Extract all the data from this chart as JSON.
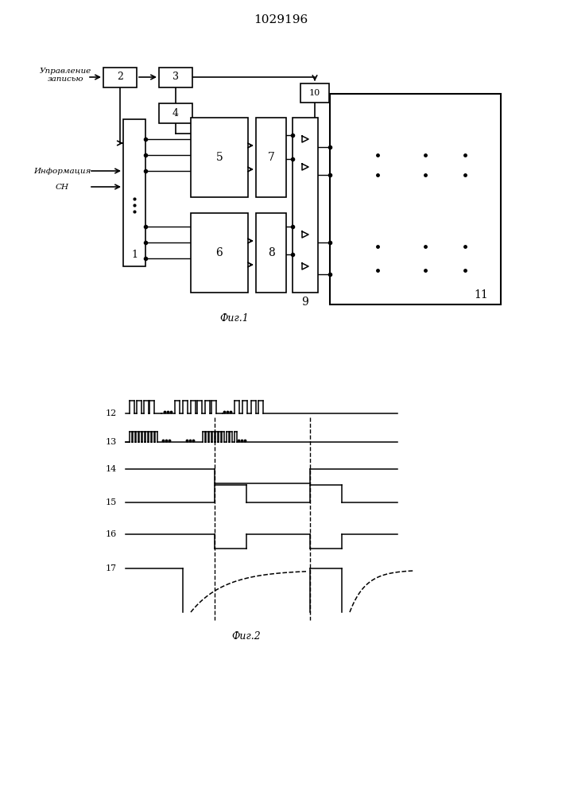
{
  "title": "1029196",
  "fig1_label": "Фиг.1",
  "fig2_label": "Фиг.2",
  "bg_color": "#ffffff",
  "line_color": "#000000",
  "text_color": "#000000",
  "label_upravlenie_1": "Управление",
  "label_upravlenie_2": "записью",
  "label_info": "Информация",
  "label_sn": "СН"
}
